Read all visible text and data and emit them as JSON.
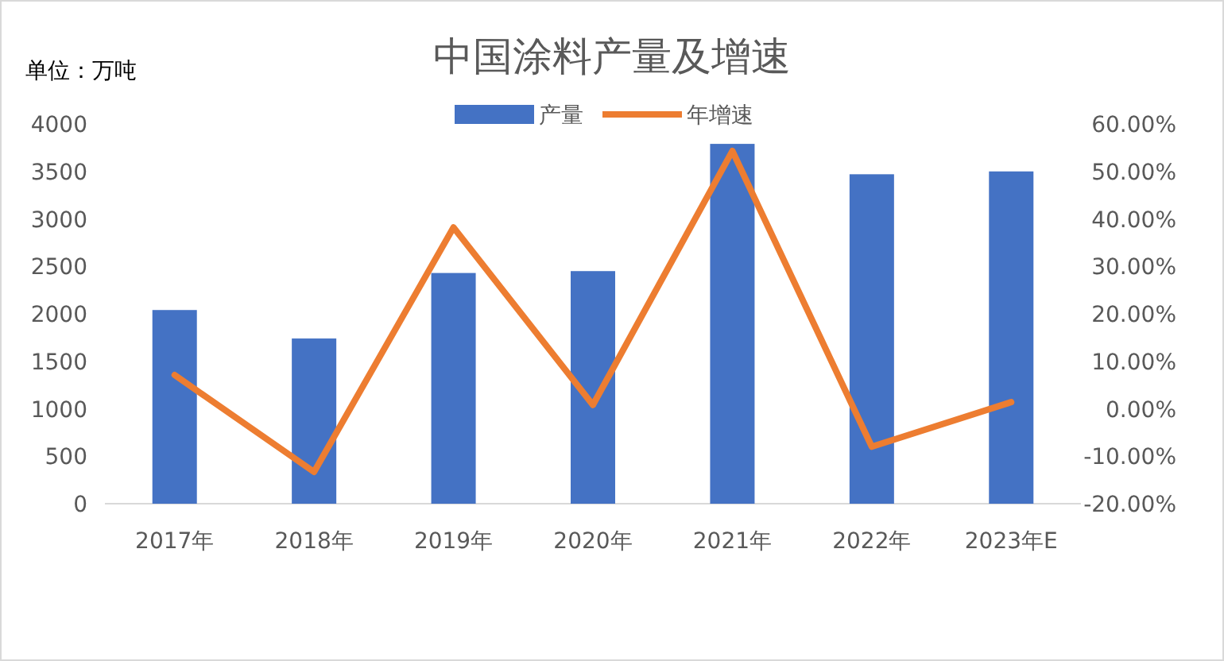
{
  "chart_data": {
    "type": "bar",
    "title": "中国涂料产量及增速",
    "annotations": [
      "单位：万吨"
    ],
    "categories": [
      "2017年",
      "2018年",
      "2019年",
      "2020年",
      "2021年",
      "2022年",
      "2023年E"
    ],
    "series": [
      {
        "name": "产量",
        "color": "#4472c4",
        "values": [
          2040,
          1740,
          2430,
          2450,
          3790,
          3470,
          3500
        ]
      },
      {
        "name": "年增速",
        "type": "line",
        "axis": "y2",
        "color": "#ed7d31",
        "values": [
          7.1,
          -13.3,
          38.2,
          0.8,
          54.3,
          -8.0,
          1.4
        ]
      }
    ],
    "ylim": [
      0,
      4000
    ],
    "yticks": [
      0,
      500,
      1000,
      1500,
      2000,
      2500,
      3000,
      3500,
      4000
    ],
    "y2lim": [
      -20,
      60
    ],
    "y2ticks": [
      {
        "value": -20,
        "label": "-20.00%"
      },
      {
        "value": -10,
        "label": "-10.00%"
      },
      {
        "value": 0,
        "label": "0.00%"
      },
      {
        "value": 10,
        "label": "10.00%"
      },
      {
        "value": 20,
        "label": "20.00%"
      },
      {
        "value": 30,
        "label": "30.00%"
      },
      {
        "value": 40,
        "label": "40.00%"
      },
      {
        "value": 50,
        "label": "50.00%"
      },
      {
        "value": 60,
        "label": "60.00%"
      }
    ],
    "legend": "top",
    "marker": "none",
    "line_style": "solid",
    "grid": false
  }
}
